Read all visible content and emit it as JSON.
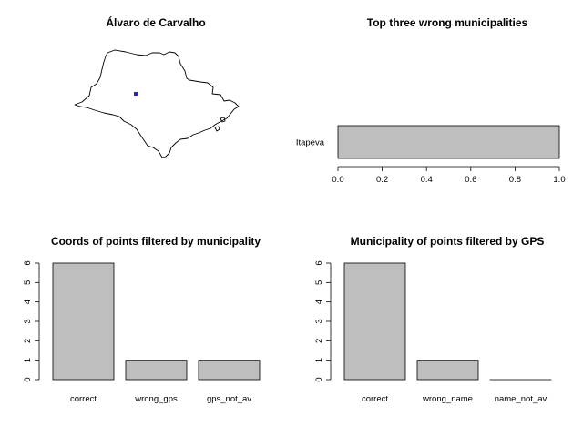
{
  "chart_data": [
    {
      "type": "map",
      "title": "Álvaro de Carvalho",
      "marker_color": "#2222cc"
    },
    {
      "type": "bar",
      "orientation": "horizontal",
      "title": "Top three wrong municipalities",
      "categories": [
        "Itapeva"
      ],
      "values": [
        1.0
      ],
      "xlim": [
        0,
        1
      ],
      "xticks": [
        "0.0",
        "0.2",
        "0.4",
        "0.6",
        "0.8",
        "1.0"
      ],
      "bar_color": "#bebebe"
    },
    {
      "type": "bar",
      "title": "Coords of points filtered by municipality",
      "categories": [
        "correct",
        "wrong_gps",
        "gps_not_av"
      ],
      "values": [
        6,
        1,
        1
      ],
      "ylim": [
        0,
        6
      ],
      "yticks": [
        "0",
        "1",
        "2",
        "3",
        "4",
        "5",
        "6"
      ],
      "bar_color": "#bebebe"
    },
    {
      "type": "bar",
      "title": "Municipality of points filtered by GPS",
      "categories": [
        "correct",
        "wrong_name",
        "name_not_av"
      ],
      "values": [
        6,
        1,
        0
      ],
      "ylim": [
        0,
        6
      ],
      "yticks": [
        "0",
        "1",
        "2",
        "3",
        "4",
        "5",
        "6"
      ],
      "bar_color": "#bebebe"
    }
  ]
}
